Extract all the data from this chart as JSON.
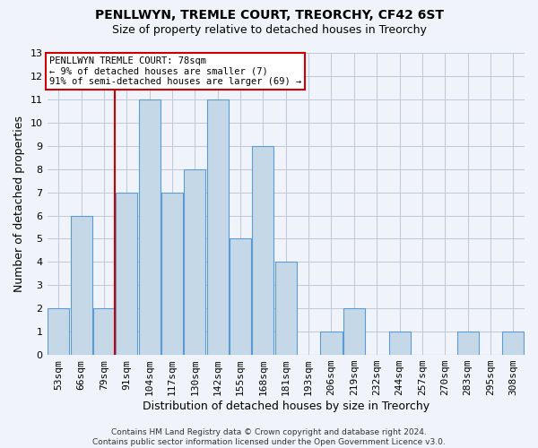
{
  "title1": "PENLLWYN, TREMLE COURT, TREORCHY, CF42 6ST",
  "title2": "Size of property relative to detached houses in Treorchy",
  "xlabel": "Distribution of detached houses by size in Treorchy",
  "ylabel": "Number of detached properties",
  "categories": [
    "53sqm",
    "66sqm",
    "79sqm",
    "91sqm",
    "104sqm",
    "117sqm",
    "130sqm",
    "142sqm",
    "155sqm",
    "168sqm",
    "181sqm",
    "193sqm",
    "206sqm",
    "219sqm",
    "232sqm",
    "244sqm",
    "257sqm",
    "270sqm",
    "283sqm",
    "295sqm",
    "308sqm"
  ],
  "values": [
    2,
    6,
    2,
    7,
    11,
    7,
    8,
    11,
    5,
    9,
    4,
    0,
    1,
    2,
    0,
    1,
    0,
    0,
    1,
    0,
    1
  ],
  "bar_color": "#c5d8e8",
  "bar_edge_color": "#5b9bd5",
  "vline_x_index": 2,
  "vline_color": "#cc0000",
  "annotation_text": "PENLLWYN TREMLE COURT: 78sqm\n← 9% of detached houses are smaller (7)\n91% of semi-detached houses are larger (69) →",
  "annotation_box_color": "#ffffff",
  "annotation_box_edge": "#cc0000",
  "ylim": [
    0,
    13
  ],
  "yticks": [
    0,
    1,
    2,
    3,
    4,
    5,
    6,
    7,
    8,
    9,
    10,
    11,
    12,
    13
  ],
  "grid_color": "#c0c8d8",
  "footer": "Contains HM Land Registry data © Crown copyright and database right 2024.\nContains public sector information licensed under the Open Government Licence v3.0.",
  "background_color": "#f0f4fa",
  "title1_fontsize": 10,
  "title2_fontsize": 9,
  "ylabel_fontsize": 9,
  "xlabel_fontsize": 9,
  "tick_fontsize": 8
}
